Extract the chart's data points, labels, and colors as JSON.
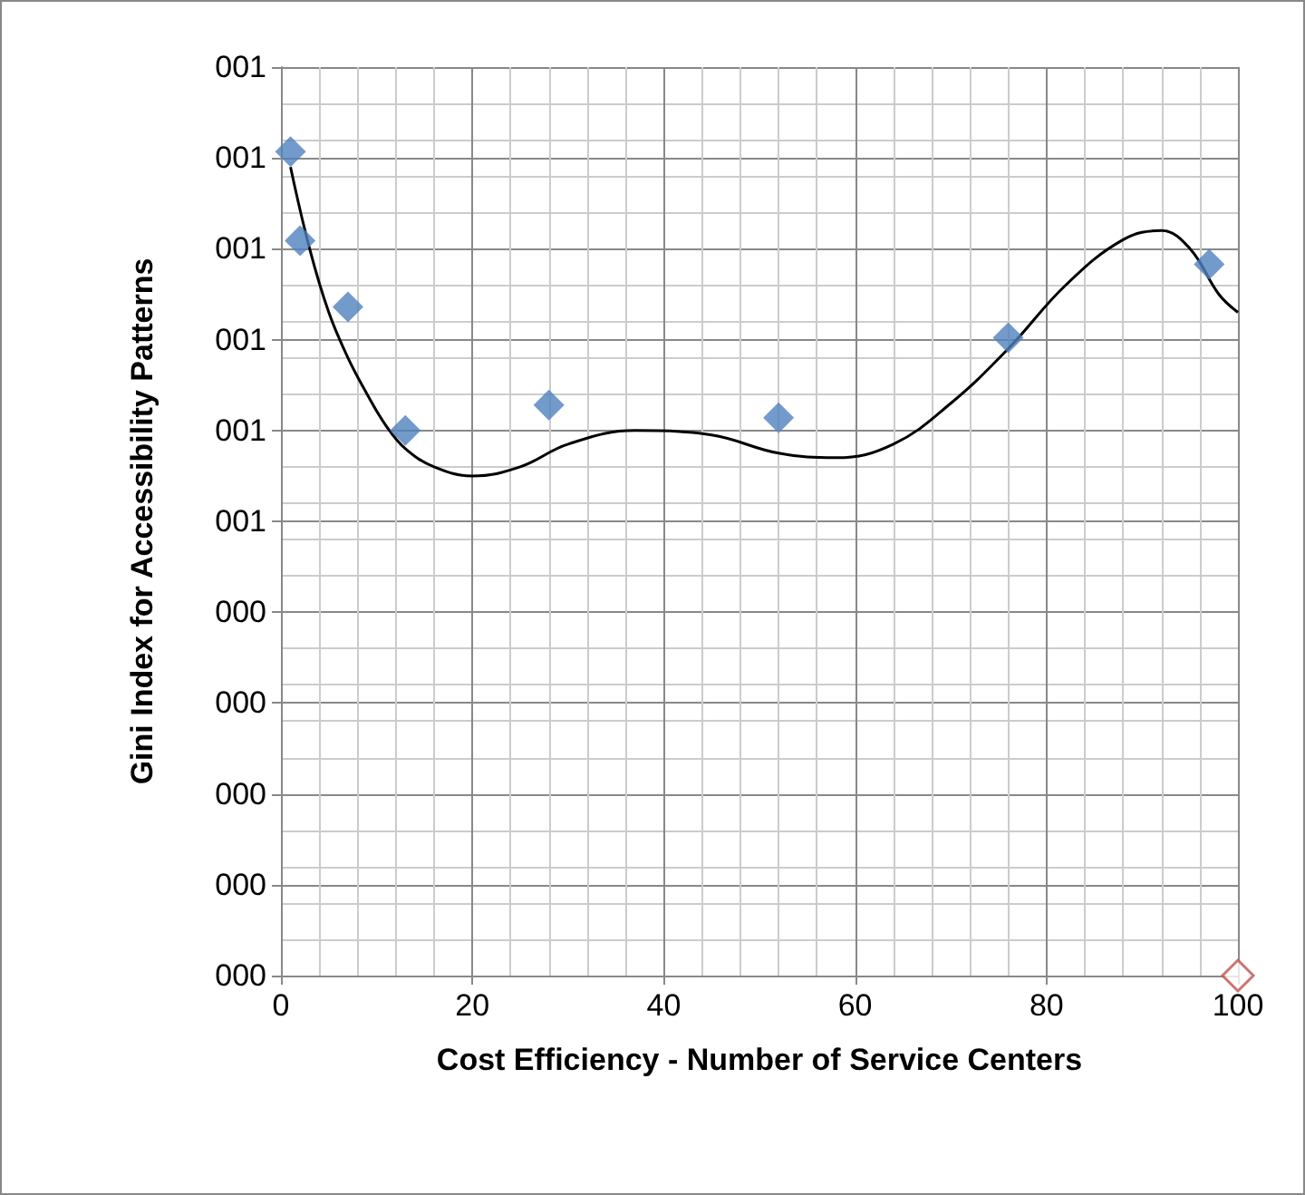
{
  "chart_data": {
    "type": "scatter",
    "xlabel": "Cost Efficiency - Number of Service Centers",
    "ylabel": "Gini Index for Accessibility Patterns",
    "xlim": [
      0,
      100
    ],
    "xticks": [
      0,
      20,
      40,
      60,
      80,
      100
    ],
    "ylim": [
      0,
      1
    ],
    "yticks": [
      {
        "value": 0,
        "label": "000"
      },
      {
        "value": 0.1,
        "label": "000"
      },
      {
        "value": 0.2,
        "label": "000"
      },
      {
        "value": 0.3,
        "label": "000"
      },
      {
        "value": 0.4,
        "label": "000"
      },
      {
        "value": 0.5,
        "label": "001"
      },
      {
        "value": 0.6,
        "label": "001"
      },
      {
        "value": 0.7,
        "label": "001"
      },
      {
        "value": 0.8,
        "label": "001"
      },
      {
        "value": 0.9,
        "label": "001"
      },
      {
        "value": 1,
        "label": "001"
      }
    ],
    "grid": true,
    "marker": "diamond",
    "series": [
      {
        "color": "#4f81bd",
        "x": [
          1,
          2,
          7,
          13,
          28,
          52,
          76,
          97
        ],
        "values": [
          0.907,
          0.809,
          0.736,
          0.6,
          0.628,
          0.614,
          0.702,
          0.783
        ]
      },
      {
        "color": "#c0504d",
        "x": [
          100
        ],
        "values": [
          0
        ]
      },
      {
        "type": "line",
        "color": "#000000",
        "marker": "none",
        "x": [
          1,
          3,
          5,
          7,
          9,
          11,
          13,
          16,
          20,
          25,
          30,
          37,
          45,
          52,
          58,
          64,
          70,
          76,
          82,
          88,
          92,
          95,
          98,
          100
        ],
        "values": [
          0.89,
          0.8,
          0.73,
          0.68,
          0.64,
          0.605,
          0.58,
          0.56,
          0.55,
          0.56,
          0.585,
          0.6,
          0.595,
          0.575,
          0.57,
          0.585,
          0.63,
          0.69,
          0.76,
          0.81,
          0.82,
          0.8,
          0.75,
          0.73
        ]
      }
    ]
  }
}
